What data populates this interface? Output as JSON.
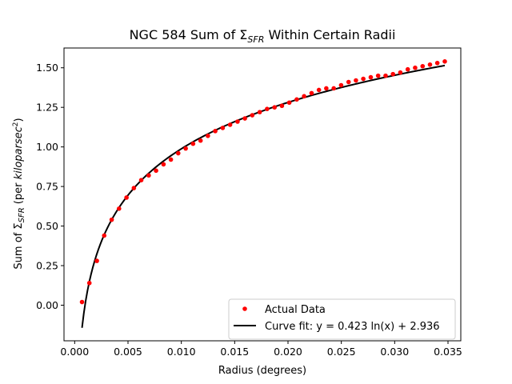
{
  "chart_data": {
    "type": "scatter",
    "title": "NGC 584 Sum of Σ",
    "title_sub": "SFR",
    "title_suffix": " Within Certain Radii",
    "xlabel": "Radius (degrees)",
    "ylabel_prefix": "Sum of Σ",
    "ylabel_sub": "SFR",
    "ylabel_middle": " (per ",
    "ylabel_italic": "kiloparsec",
    "ylabel_sup": "2",
    "ylabel_suffix": ")",
    "xlim": [
      -0.001,
      0.0362
    ],
    "ylim": [
      -0.225,
      1.625
    ],
    "xticks": [
      0.0,
      0.005,
      0.01,
      0.015,
      0.02,
      0.025,
      0.03,
      0.035
    ],
    "xtick_labels": [
      "0.000",
      "0.005",
      "0.010",
      "0.015",
      "0.020",
      "0.025",
      "0.030",
      "0.035"
    ],
    "yticks": [
      0.0,
      0.25,
      0.5,
      0.75,
      1.0,
      1.25,
      1.5
    ],
    "ytick_labels": [
      "0.00",
      "0.25",
      "0.50",
      "0.75",
      "1.00",
      "1.25",
      "1.50"
    ],
    "grid": false,
    "legend_position": "lower-right",
    "series": [
      {
        "name": "Actual Data",
        "kind": "scatter",
        "color": "#ff0000",
        "x": [
          0.00069,
          0.00138,
          0.00208,
          0.00277,
          0.00347,
          0.00416,
          0.00486,
          0.00555,
          0.00624,
          0.00694,
          0.00763,
          0.00833,
          0.00902,
          0.00971,
          0.01041,
          0.0111,
          0.0118,
          0.01249,
          0.01318,
          0.01388,
          0.01457,
          0.01527,
          0.01596,
          0.01665,
          0.01735,
          0.01804,
          0.01874,
          0.01943,
          0.02012,
          0.02082,
          0.02151,
          0.02221,
          0.0229,
          0.02359,
          0.02429,
          0.02498,
          0.02568,
          0.02637,
          0.02706,
          0.02776,
          0.02845,
          0.02915,
          0.02984,
          0.03053,
          0.03123,
          0.03192,
          0.03262,
          0.03331,
          0.034,
          0.0347
        ],
        "y": [
          0.02,
          0.14,
          0.28,
          0.44,
          0.54,
          0.61,
          0.68,
          0.74,
          0.79,
          0.82,
          0.85,
          0.89,
          0.92,
          0.96,
          0.99,
          1.02,
          1.04,
          1.07,
          1.1,
          1.12,
          1.14,
          1.16,
          1.18,
          1.2,
          1.22,
          1.24,
          1.25,
          1.26,
          1.28,
          1.3,
          1.32,
          1.34,
          1.36,
          1.37,
          1.37,
          1.39,
          1.41,
          1.42,
          1.43,
          1.44,
          1.45,
          1.45,
          1.46,
          1.47,
          1.49,
          1.5,
          1.51,
          1.52,
          1.53,
          1.54
        ]
      },
      {
        "name": "Curve fit: y = 0.423 ln(x) + 2.936",
        "kind": "line",
        "color": "#000000",
        "formula": "y = 0.423 ln(x) + 2.936",
        "coef_a": 0.423,
        "coef_b": 2.936,
        "x_range": [
          0.00069,
          0.0347
        ]
      }
    ]
  }
}
